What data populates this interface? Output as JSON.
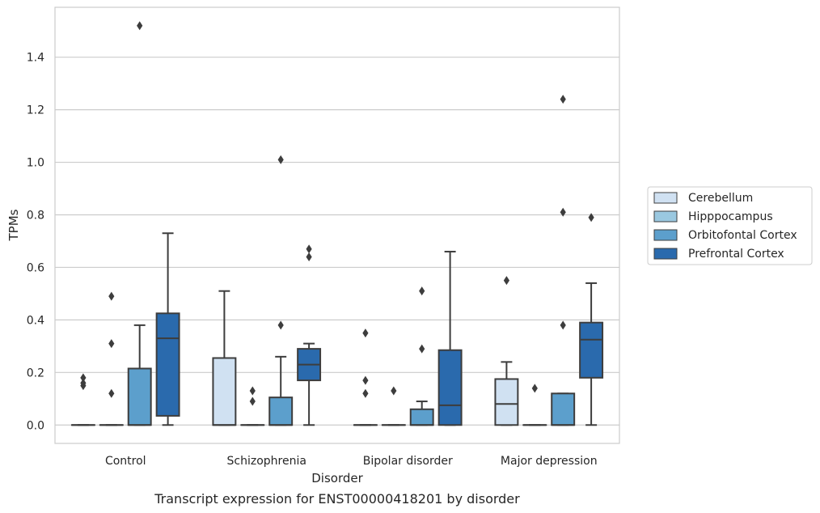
{
  "chart_data": {
    "type": "box",
    "title": "",
    "caption": "Transcript expression for ENST00000418201 by disorder",
    "xlabel": "Disorder",
    "ylabel": "TPMs",
    "ylim": [
      -0.07,
      1.59
    ],
    "yticks": [
      "0.0",
      "0.2",
      "0.4",
      "0.6",
      "0.8",
      "1.0",
      "1.2",
      "1.4"
    ],
    "grid": "horizontal",
    "legend_position": "right",
    "categories": [
      "Control",
      "Schizophrenia",
      "Bipolar disorder",
      "Major depression"
    ],
    "series": [
      {
        "name": "Cerebellum",
        "color": "#d0e1f2",
        "boxes": [
          {
            "whislo": 0.0,
            "q1": 0.0,
            "med": 0.0,
            "q3": 0.0,
            "whishi": 0.0,
            "fliers": [
              0.15,
              0.16,
              0.18
            ]
          },
          {
            "whislo": 0.0,
            "q1": 0.0,
            "med": 0.0,
            "q3": 0.255,
            "whishi": 0.51,
            "fliers": []
          },
          {
            "whislo": 0.0,
            "q1": 0.0,
            "med": 0.0,
            "q3": 0.0,
            "whishi": 0.0,
            "fliers": [
              0.12,
              0.17,
              0.35
            ]
          },
          {
            "whislo": 0.0,
            "q1": 0.0,
            "med": 0.08,
            "q3": 0.175,
            "whishi": 0.24,
            "fliers": [
              0.55
            ]
          }
        ]
      },
      {
        "name": "Hipppocampus",
        "color": "#9ac8e0",
        "boxes": [
          {
            "whislo": 0.0,
            "q1": 0.0,
            "med": 0.0,
            "q3": 0.0,
            "whishi": 0.0,
            "fliers": [
              0.12,
              0.31,
              0.49
            ]
          },
          {
            "whislo": 0.0,
            "q1": 0.0,
            "med": 0.0,
            "q3": 0.0,
            "whishi": 0.0,
            "fliers": [
              0.09,
              0.13
            ]
          },
          {
            "whislo": 0.0,
            "q1": 0.0,
            "med": 0.0,
            "q3": 0.0,
            "whishi": 0.0,
            "fliers": [
              0.13
            ]
          },
          {
            "whislo": 0.0,
            "q1": 0.0,
            "med": 0.0,
            "q3": 0.0,
            "whishi": 0.0,
            "fliers": [
              0.14
            ]
          }
        ]
      },
      {
        "name": "Orbitofontal Cortex",
        "color": "#5c9fcc",
        "boxes": [
          {
            "whislo": 0.0,
            "q1": 0.0,
            "med": 0.0,
            "q3": 0.215,
            "whishi": 0.38,
            "fliers": [
              1.52
            ]
          },
          {
            "whislo": 0.0,
            "q1": 0.0,
            "med": 0.0,
            "q3": 0.105,
            "whishi": 0.26,
            "fliers": [
              0.38,
              1.01
            ]
          },
          {
            "whislo": 0.0,
            "q1": 0.0,
            "med": 0.0,
            "q3": 0.06,
            "whishi": 0.09,
            "fliers": [
              0.29,
              0.51
            ]
          },
          {
            "whislo": 0.0,
            "q1": 0.0,
            "med": 0.0,
            "q3": 0.12,
            "whishi": 0.12,
            "fliers": [
              0.38,
              0.81,
              1.24
            ]
          }
        ]
      },
      {
        "name": "Prefrontal Cortex",
        "color": "#2a6aad",
        "boxes": [
          {
            "whislo": 0.0,
            "q1": 0.035,
            "med": 0.33,
            "q3": 0.425,
            "whishi": 0.73,
            "fliers": []
          },
          {
            "whislo": 0.0,
            "q1": 0.17,
            "med": 0.23,
            "q3": 0.29,
            "whishi": 0.31,
            "fliers": [
              0.64,
              0.67
            ]
          },
          {
            "whislo": 0.0,
            "q1": 0.0,
            "med": 0.075,
            "q3": 0.285,
            "whishi": 0.66,
            "fliers": []
          },
          {
            "whislo": 0.0,
            "q1": 0.18,
            "med": 0.325,
            "q3": 0.39,
            "whishi": 0.54,
            "fliers": [
              0.79
            ]
          }
        ]
      }
    ]
  }
}
